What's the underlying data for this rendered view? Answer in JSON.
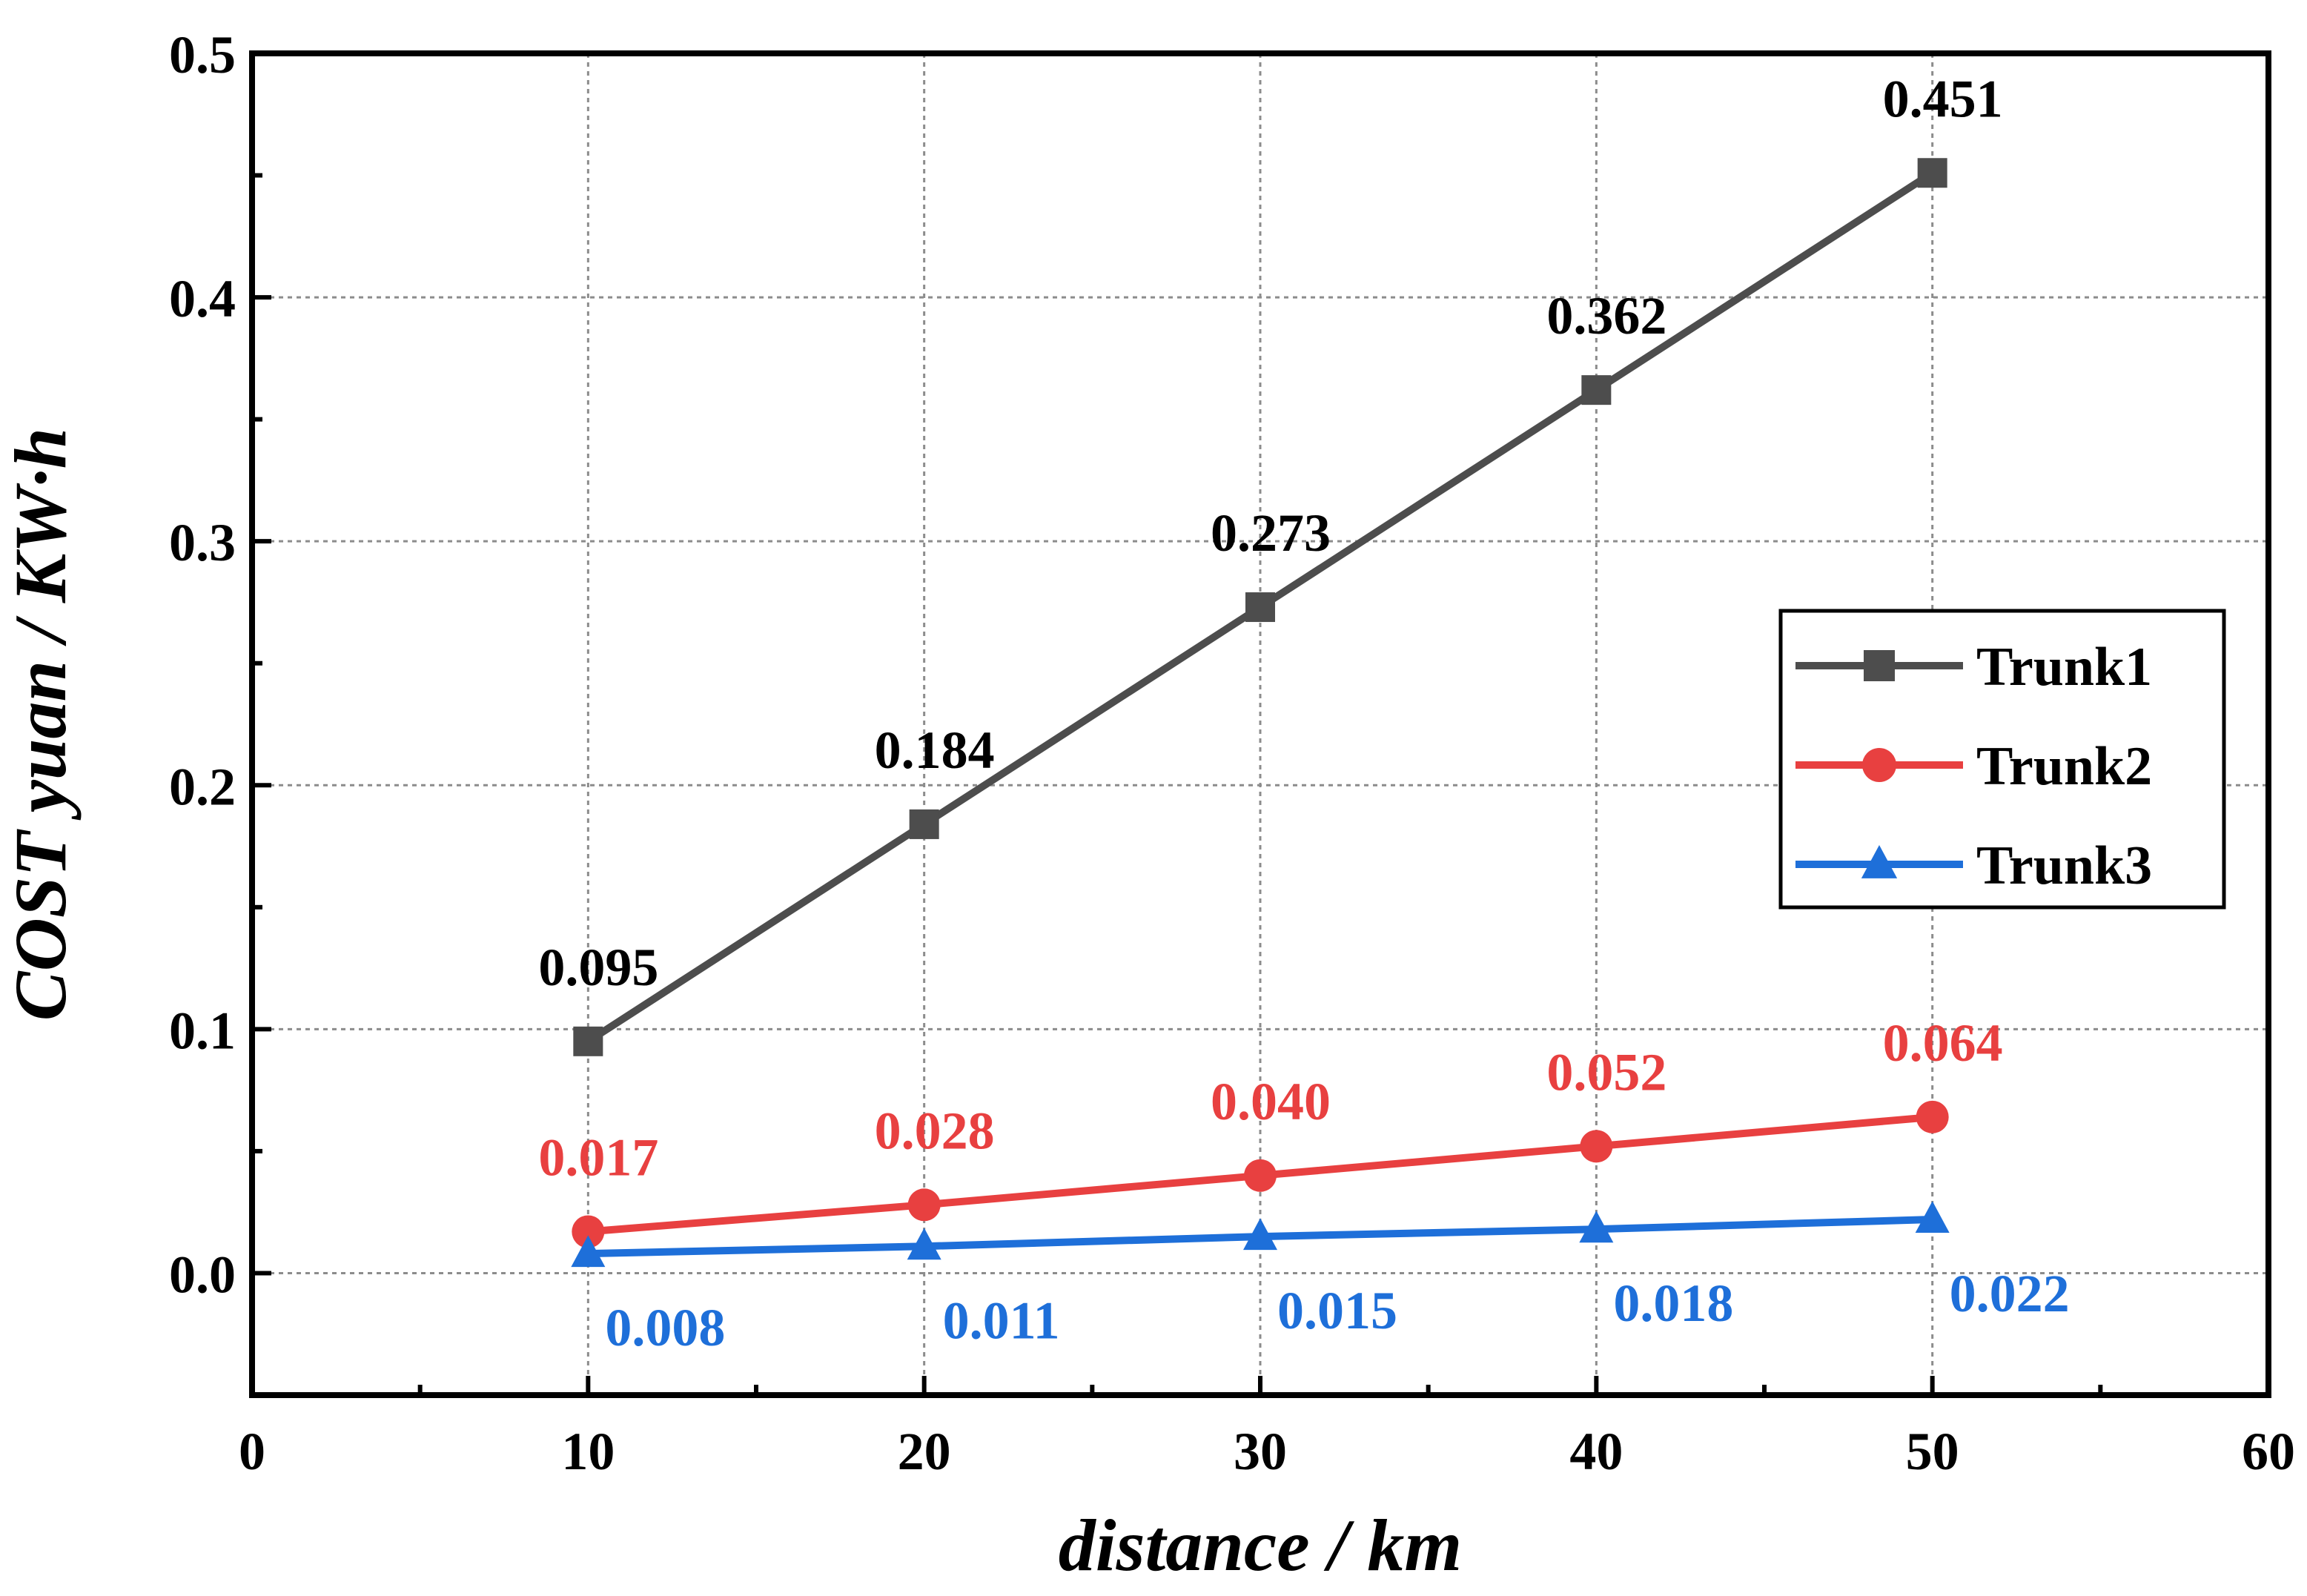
{
  "chart_data": {
    "type": "line",
    "title": "",
    "xlabel": "distance / km",
    "ylabel": "COST yuan / KW·h",
    "xlim": [
      0,
      60
    ],
    "ylim": [
      -0.05,
      0.5
    ],
    "grid": true,
    "x": [
      10,
      20,
      30,
      40,
      50
    ],
    "x_ticks": [
      0,
      10,
      20,
      30,
      40,
      50,
      60
    ],
    "x_tick_labels": [
      "0",
      "10",
      "20",
      "30",
      "40",
      "50",
      "60"
    ],
    "y_ticks": [
      0.0,
      0.1,
      0.2,
      0.3,
      0.4,
      0.5
    ],
    "y_tick_labels": [
      "0.0",
      "0.1",
      "0.2",
      "0.3",
      "0.4",
      "0.5"
    ],
    "legend_position": "right",
    "series": [
      {
        "name": "Trunk1",
        "color": "#4d4d4d",
        "marker": "square",
        "values": [
          0.095,
          0.184,
          0.273,
          0.362,
          0.451
        ],
        "labels": [
          "0.095",
          "0.184",
          "0.273",
          "0.362",
          "0.451"
        ],
        "label_color": "#000000",
        "label_position": "above"
      },
      {
        "name": "Trunk2",
        "color": "#e84040",
        "marker": "circle",
        "values": [
          0.017,
          0.028,
          0.04,
          0.052,
          0.064
        ],
        "labels": [
          "0.017",
          "0.028",
          "0.040",
          "0.052",
          "0.064"
        ],
        "label_color": "#e84040",
        "label_position": "above"
      },
      {
        "name": "Trunk3",
        "color": "#1e6fd9",
        "marker": "triangle",
        "values": [
          0.008,
          0.011,
          0.015,
          0.018,
          0.022
        ],
        "labels": [
          "0.008",
          "0.011",
          "0.015",
          "0.018",
          "0.022"
        ],
        "label_color": "#1e6fd9",
        "label_position": "below-right"
      }
    ]
  }
}
